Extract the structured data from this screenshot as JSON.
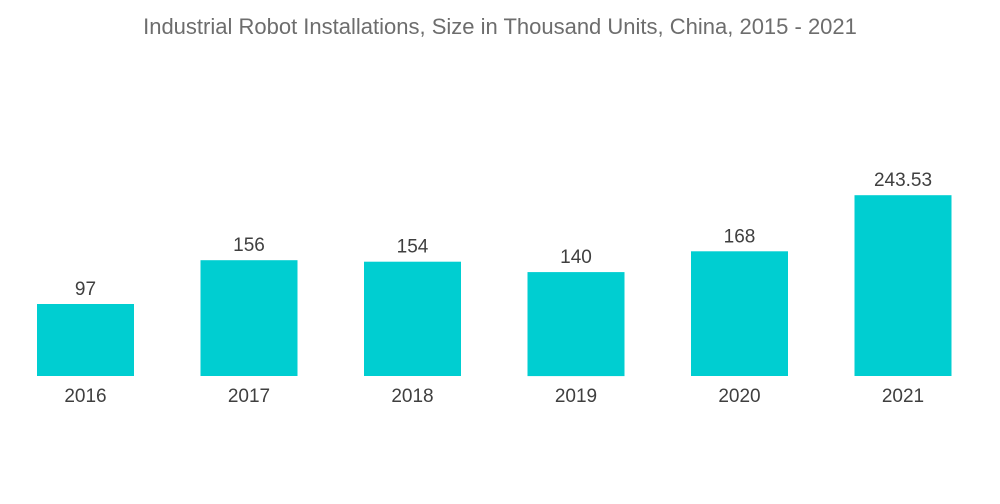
{
  "chart_data": {
    "type": "bar",
    "title": "Industrial Robot Installations, Size in Thousand Units, China, 2015 - 2021",
    "categories": [
      "2016",
      "2017",
      "2018",
      "2019",
      "2020",
      "2021"
    ],
    "values": [
      97,
      156,
      154,
      140,
      168,
      243.53
    ],
    "value_labels": [
      "97",
      "156",
      "154",
      "140",
      "168",
      "243.53"
    ],
    "xlabel": "",
    "ylabel": "",
    "ylim": [
      0,
      260
    ],
    "grid": false,
    "legend": "none",
    "bar_color": "#00CED1"
  }
}
